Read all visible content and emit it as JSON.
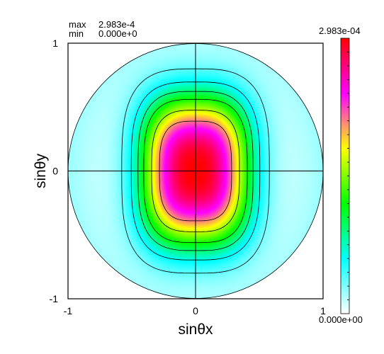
{
  "stats": {
    "max_label": "max",
    "max_value": "2.983e-4",
    "min_label": "min",
    "min_value": "0.000e+0"
  },
  "chart_data": {
    "type": "heatmap",
    "title": "",
    "xlabel": "sinθx",
    "ylabel": "sinθy",
    "xlim": [
      -1,
      1
    ],
    "ylim": [
      -1,
      1
    ],
    "x_ticks": [
      "-1",
      "0",
      "1"
    ],
    "y_ticks": [
      "1",
      "0",
      "-1"
    ],
    "value_max": 0.0002983,
    "value_min": 0.0,
    "colorbar": {
      "max_label": "2.983e-04",
      "min_label": "0.000e+00",
      "colors": [
        "#ffffff",
        "#00ffff",
        "#00ff00",
        "#ffff00",
        "#ff00ff",
        "#ff0000"
      ]
    },
    "contour_levels_fraction": [
      0.1,
      0.2,
      0.3,
      0.4,
      0.55,
      0.7
    ],
    "unit_circle": true,
    "crosshair_at_zero": true
  }
}
